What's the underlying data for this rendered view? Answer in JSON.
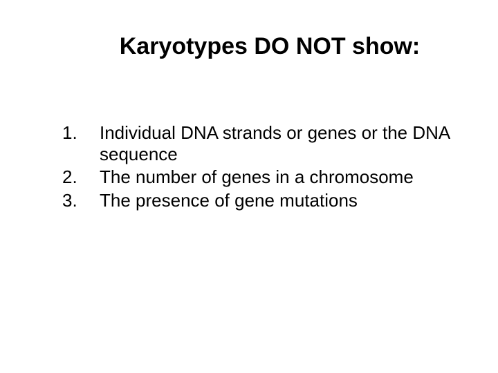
{
  "title": "Karyotypes DO NOT show:",
  "title_fontsize": 34,
  "title_fontweight": "bold",
  "body_fontsize": 26,
  "text_color": "#000000",
  "background_color": "#ffffff",
  "items": [
    "Individual DNA strands or genes or the DNA sequence",
    "The number of genes in a chromosome",
    "The presence of gene mutations"
  ]
}
